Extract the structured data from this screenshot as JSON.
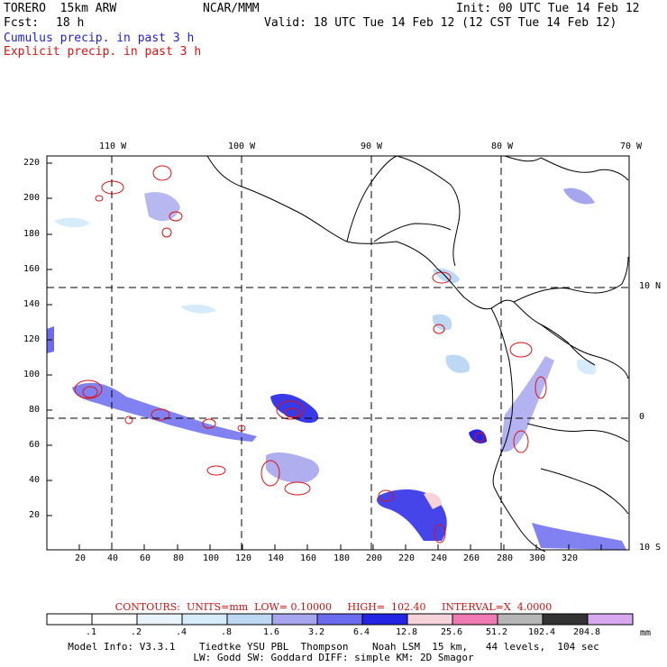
{
  "header": {
    "model": "TORERO  15km ARW",
    "org": "NCAR/MMM",
    "init": "Init: 00 UTC Tue 14 Feb 12",
    "fcst_label": "Fcst:",
    "fcst_value": "18 h",
    "valid": "Valid: 18 UTC Tue 14 Feb 12 (12 CST Tue 14 Feb 12)",
    "field1": "Cumulus precip. in past 3 h",
    "field2": "Explicit precip. in past 3 h",
    "field1_color": "#1f1fd0",
    "field2_color": "#e01010"
  },
  "map": {
    "top_lon_labels": [
      "110 W",
      "100 W",
      "90 W",
      "80 W",
      "70 W"
    ],
    "right_lat_labels": [
      "10 N",
      "0",
      "10 S"
    ],
    "y_ticks": [
      "220",
      "200",
      "180",
      "160",
      "140",
      "120",
      "100",
      "80",
      "60",
      "40",
      "20"
    ],
    "x_ticks": [
      "20",
      "40",
      "60",
      "80",
      "100",
      "120",
      "140",
      "160",
      "180",
      "200",
      "220",
      "240",
      "260",
      "280",
      "300",
      "320"
    ]
  },
  "contours": {
    "text": "CONTOURS:  UNITS=mm  LOW= 0.10000     HIGH=  102.40     INTERVAL=X  4.0000"
  },
  "colorbar": {
    "unit": "mm",
    "labels": [
      ".1",
      ".2",
      ".4",
      ".8",
      "1.6",
      "3.2",
      "6.4",
      "12.8",
      "25.6",
      "51.2",
      "102.4",
      "204.8"
    ],
    "colors": [
      "#ffffff",
      "#ffffff",
      "#eaf4fc",
      "#d6ecfa",
      "#bcd8f2",
      "#a6a6ee",
      "#6b6bf0",
      "#2424e6",
      "#f6d2da",
      "#f07ab4",
      "#b6b6b6",
      "#333333",
      "#d8a8f0"
    ]
  },
  "footer": {
    "line1": "Model Info: V3.3.1    Tiedtke YSU PBL  Thompson    Noah LSM  15 km,   44 levels,  104 sec",
    "line2": "LW: Godd SW: Goddard DIFF: simple KM: 2D Smagor"
  }
}
